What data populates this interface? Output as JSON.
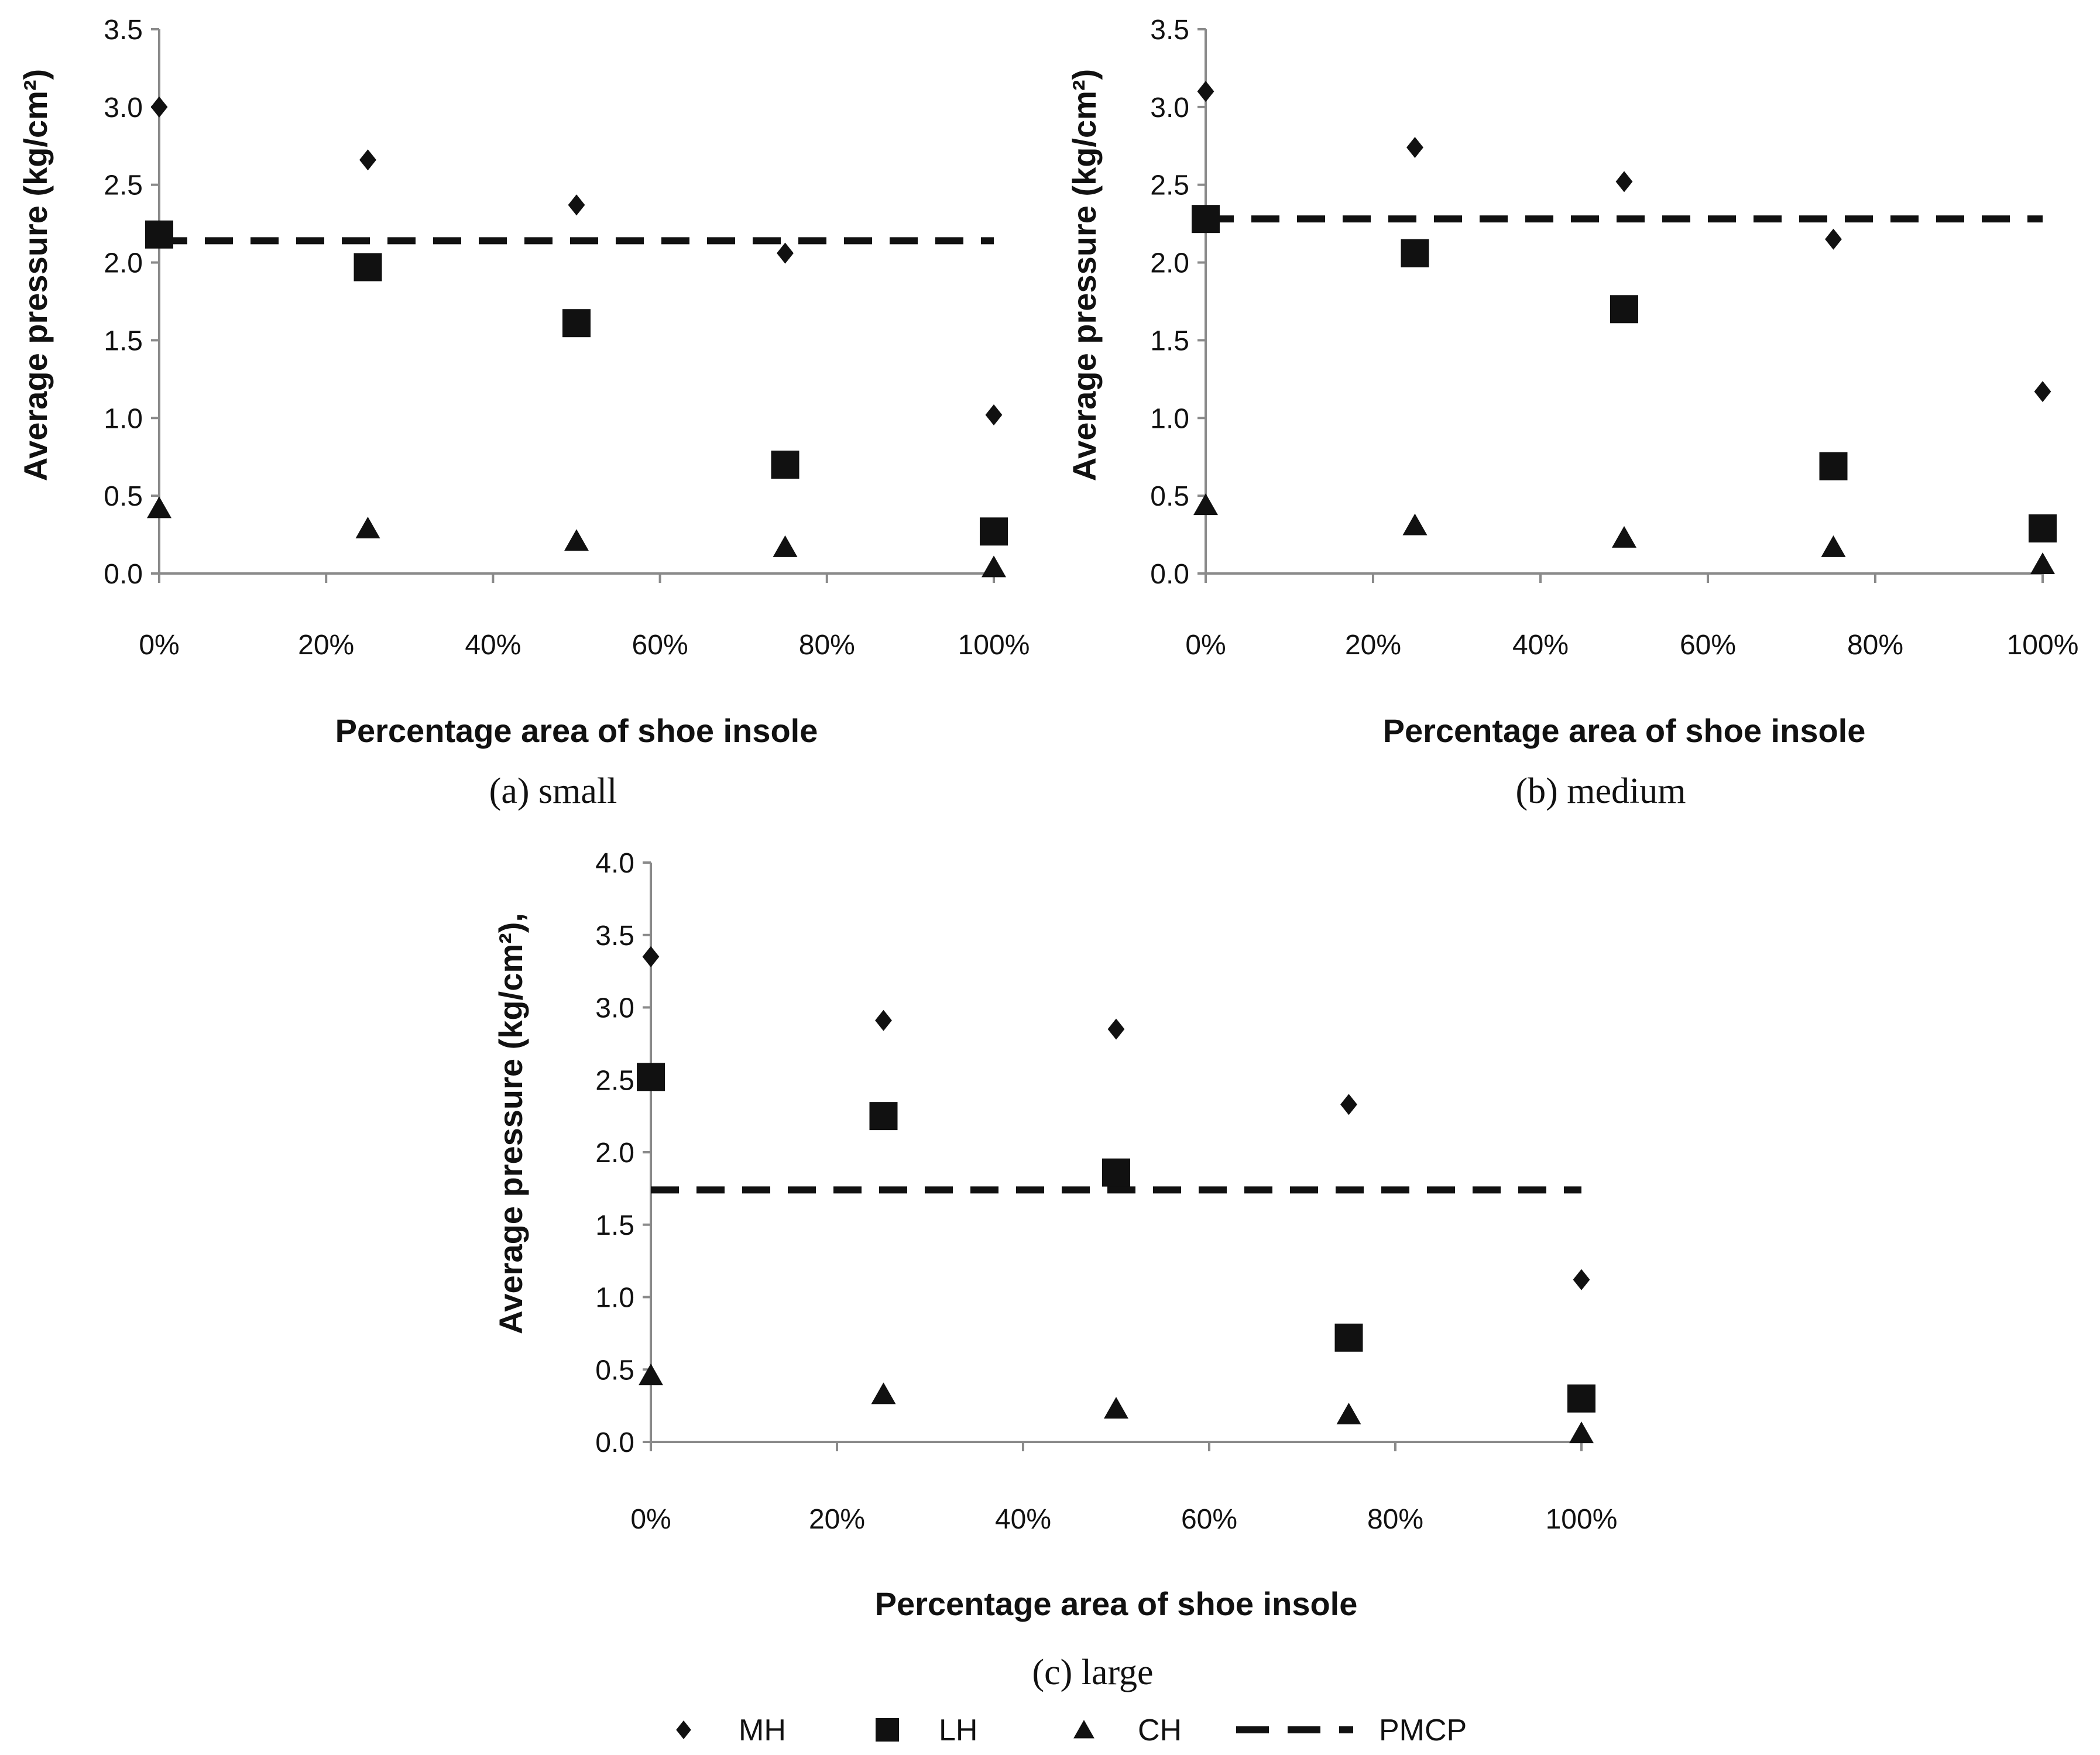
{
  "chart_data": [
    {
      "type": "scatter",
      "caption": "(a) small",
      "xlabel": "Percentage area of shoe insole",
      "ylabel": "Average pressure (kg/cm²)",
      "x": [
        0,
        25,
        50,
        75,
        100
      ],
      "xticks": [
        "0%",
        "20%",
        "40%",
        "60%",
        "80%",
        "100%"
      ],
      "xtick_values": [
        0,
        20,
        40,
        60,
        80,
        100
      ],
      "ylim": [
        0,
        3.5
      ],
      "yticks": [
        "0.0",
        "0.5",
        "1.0",
        "1.5",
        "2.0",
        "2.5",
        "3.0",
        "3.5"
      ],
      "ytick_values": [
        0,
        0.5,
        1.0,
        1.5,
        2.0,
        2.5,
        3.0,
        3.5
      ],
      "series": [
        {
          "name": "MH",
          "marker": "diamond",
          "values": [
            3.0,
            2.66,
            2.37,
            2.06,
            1.02
          ]
        },
        {
          "name": "LH",
          "marker": "square",
          "values": [
            2.18,
            1.97,
            1.61,
            0.7,
            0.27
          ]
        },
        {
          "name": "CH",
          "marker": "triangle",
          "values": [
            0.42,
            0.29,
            0.21,
            0.17,
            0.04
          ]
        }
      ],
      "pmcp": 2.14
    },
    {
      "type": "scatter",
      "caption": "(b) medium",
      "xlabel": "Percentage area of shoe insole",
      "ylabel": "Average pressure (kg/cm²)",
      "x": [
        0,
        25,
        50,
        75,
        100
      ],
      "xticks": [
        "0%",
        "20%",
        "40%",
        "60%",
        "80%",
        "100%"
      ],
      "xtick_values": [
        0,
        20,
        40,
        60,
        80,
        100
      ],
      "ylim": [
        0,
        3.5
      ],
      "yticks": [
        "0.0",
        "0.5",
        "1.0",
        "1.5",
        "2.0",
        "2.5",
        "3.0",
        "3.5"
      ],
      "ytick_values": [
        0,
        0.5,
        1.0,
        1.5,
        2.0,
        2.5,
        3.0,
        3.5
      ],
      "series": [
        {
          "name": "MH",
          "marker": "diamond",
          "values": [
            3.1,
            2.74,
            2.52,
            2.15,
            1.17
          ]
        },
        {
          "name": "LH",
          "marker": "square",
          "values": [
            2.28,
            2.06,
            1.7,
            0.69,
            0.29
          ]
        },
        {
          "name": "CH",
          "marker": "triangle",
          "values": [
            0.44,
            0.31,
            0.23,
            0.17,
            0.06
          ]
        }
      ],
      "pmcp": 2.28
    },
    {
      "type": "scatter",
      "caption": "(c) large",
      "xlabel": "Percentage area of shoe insole",
      "ylabel": "Average pressure (kg/cm²),",
      "x": [
        0,
        25,
        50,
        75,
        100
      ],
      "xticks": [
        "0%",
        "20%",
        "40%",
        "60%",
        "80%",
        "100%"
      ],
      "xtick_values": [
        0,
        20,
        40,
        60,
        80,
        100
      ],
      "ylim": [
        0,
        4.0
      ],
      "yticks": [
        "0.0",
        "0.5",
        "1.0",
        "1.5",
        "2.0",
        "2.5",
        "3.0",
        "3.5",
        "4.0"
      ],
      "ytick_values": [
        0,
        0.5,
        1.0,
        1.5,
        2.0,
        2.5,
        3.0,
        3.5,
        4.0
      ],
      "series": [
        {
          "name": "MH",
          "marker": "diamond",
          "values": [
            3.35,
            2.91,
            2.85,
            2.33,
            1.12
          ]
        },
        {
          "name": "LH",
          "marker": "square",
          "values": [
            2.52,
            2.25,
            1.86,
            0.72,
            0.3
          ]
        },
        {
          "name": "CH",
          "marker": "triangle",
          "values": [
            0.46,
            0.33,
            0.23,
            0.19,
            0.06
          ]
        }
      ],
      "pmcp": 1.74
    }
  ],
  "legend": {
    "items": [
      {
        "name": "MH",
        "marker": "diamond"
      },
      {
        "name": "LH",
        "marker": "square"
      },
      {
        "name": "CH",
        "marker": "triangle"
      },
      {
        "name": "PMCP",
        "marker": "dash"
      }
    ]
  },
  "colors": {
    "ink": "#111111",
    "axis": "#8a8a8a"
  }
}
